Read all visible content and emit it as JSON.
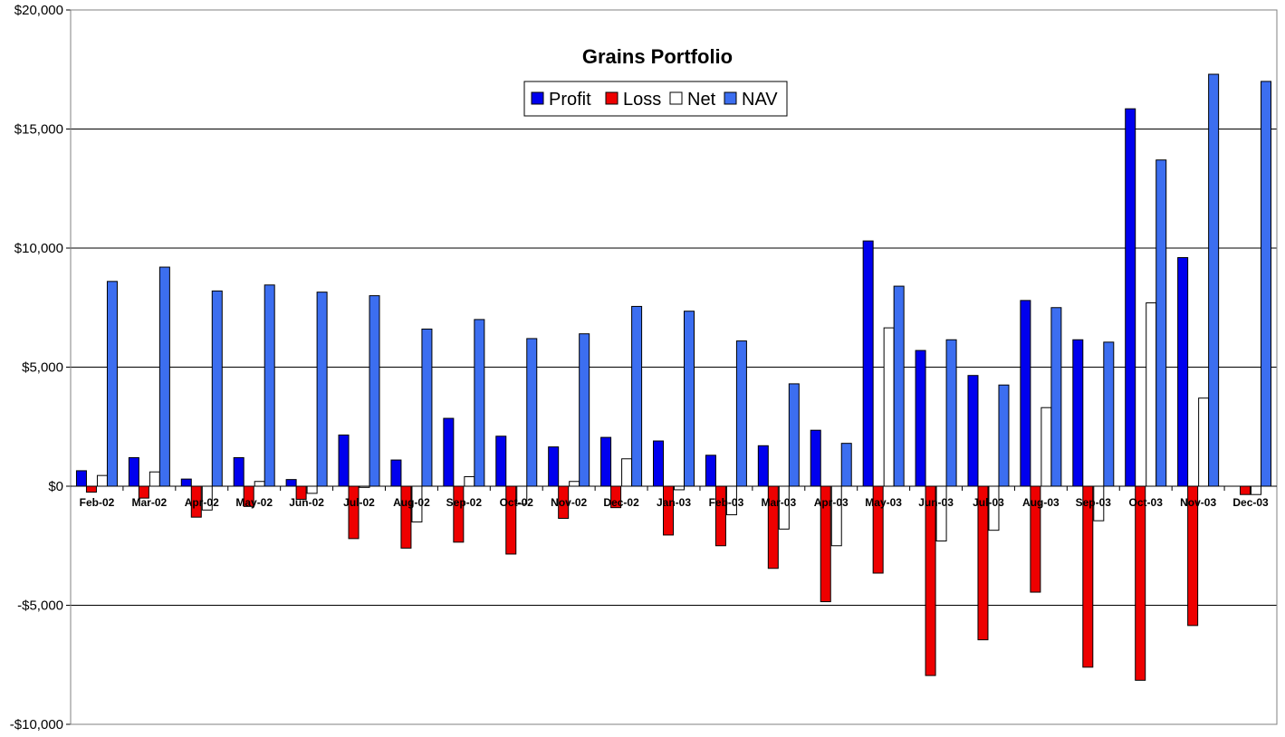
{
  "chart_data": {
    "type": "bar",
    "title": "Grains Portfolio",
    "xlabel": "",
    "ylabel": "",
    "ylim": [
      -10000,
      20000
    ],
    "yticks": [
      -10000,
      -5000,
      0,
      5000,
      10000,
      15000,
      20000
    ],
    "ytick_labels": [
      "-$10,000",
      "-$5,000",
      "$0",
      "$5,000",
      "$10,000",
      "$15,000",
      "$20,000"
    ],
    "grid": true,
    "legend_position": "top-center",
    "categories": [
      "Feb-02",
      "Mar-02",
      "Apr-02",
      "May-02",
      "Jun-02",
      "Jul-02",
      "Aug-02",
      "Sep-02",
      "Oct-02",
      "Nov-02",
      "Dec-02",
      "Jan-03",
      "Feb-03",
      "Mar-03",
      "Apr-03",
      "May-03",
      "Jun-03",
      "Jul-03",
      "Aug-03",
      "Sep-03",
      "Oct-03",
      "Nov-03",
      "Dec-03"
    ],
    "series": [
      {
        "name": "Profit",
        "color": "#0000ee",
        "values": [
          650,
          1200,
          300,
          1200,
          280,
          2150,
          1100,
          2850,
          2100,
          1650,
          2050,
          1900,
          1300,
          1700,
          2350,
          10300,
          5700,
          4650,
          7800,
          6150,
          15850,
          9600,
          0
        ]
      },
      {
        "name": "Loss",
        "color": "#ee0000",
        "values": [
          -250,
          -500,
          -1300,
          -850,
          -550,
          -2200,
          -2600,
          -2350,
          -2850,
          -1350,
          -900,
          -2050,
          -2500,
          -3450,
          -4850,
          -3650,
          -7950,
          -6450,
          -4450,
          -7600,
          -8150,
          -5850,
          -350
        ]
      },
      {
        "name": "Net",
        "color": "#ffffff",
        "values": [
          450,
          600,
          -1000,
          200,
          -300,
          -50,
          -1500,
          400,
          -750,
          200,
          1150,
          -150,
          -1200,
          -1800,
          -2500,
          6650,
          -2300,
          -1850,
          3300,
          -1450,
          7700,
          3700,
          -350
        ]
      },
      {
        "name": "NAV",
        "color": "#3c6ef0",
        "values": [
          8600,
          9200,
          8200,
          8450,
          8150,
          8000,
          6600,
          7000,
          6200,
          6400,
          7550,
          7350,
          6100,
          4300,
          1800,
          8400,
          6150,
          4250,
          7500,
          6050,
          13700,
          17300,
          17000
        ]
      }
    ]
  }
}
